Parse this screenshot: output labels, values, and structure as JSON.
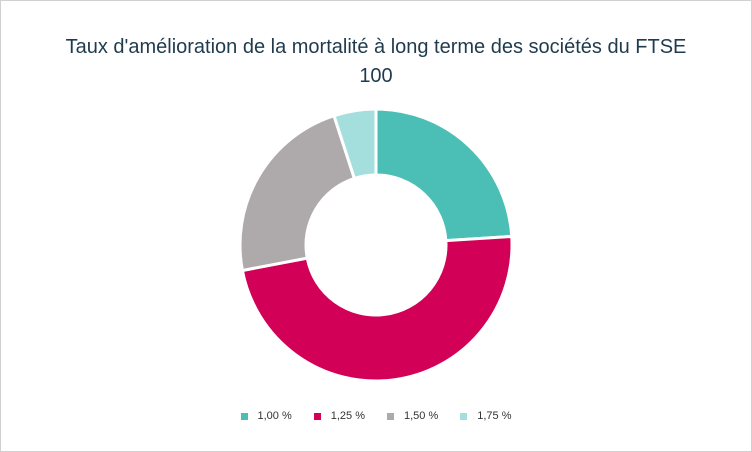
{
  "chart_data": {
    "type": "pie",
    "donut": true,
    "title": "Taux d'amélioration de la mortalité à long terme des sociétés du FTSE 100",
    "categories": [
      "1,00 %",
      "1,25 %",
      "1,50 %",
      "1,75 %"
    ],
    "values": [
      24,
      48,
      23,
      5
    ],
    "colors": [
      "#4bbfb5",
      "#d20057",
      "#aeaaab",
      "#a5dfdd"
    ],
    "legend_position": "bottom"
  }
}
